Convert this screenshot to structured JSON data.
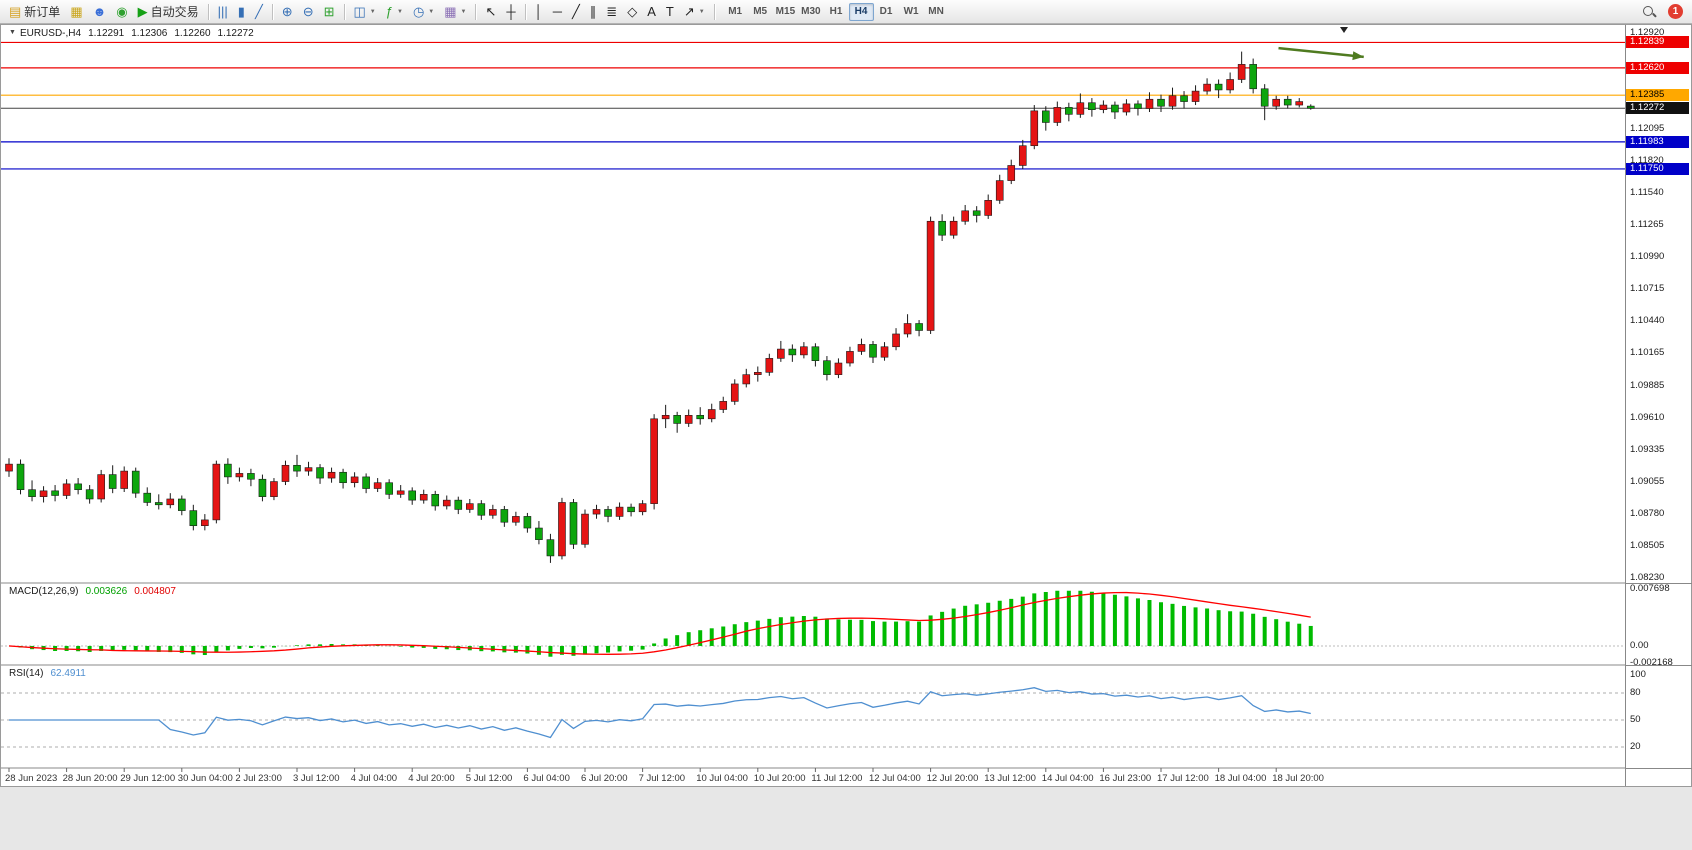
{
  "toolbar": {
    "items": [
      {
        "name": "new-order-button",
        "icon": "new-order-icon",
        "glyph": "▤",
        "glyph_color": "#d5a021",
        "label": "新订单"
      },
      {
        "name": "charts-button",
        "icon": "chart-window-icon",
        "glyph": "▦",
        "glyph_color": "#c9a417"
      },
      {
        "name": "profiles-button",
        "icon": "profile-icon",
        "glyph": "☻",
        "glyph_color": "#3a6fd8"
      },
      {
        "name": "market-watch-button",
        "icon": "market-watch-icon",
        "glyph": "◉",
        "glyph_color": "#2fa12f"
      },
      {
        "name": "autotrade-button",
        "icon": "autotrade-icon",
        "glyph": "▶",
        "glyph_color": "#15a015",
        "label": "自动交易"
      },
      {
        "type": "separator"
      },
      {
        "name": "bar-chart-button",
        "icon": "bar-chart-icon",
        "glyph": "|||",
        "glyph_color": "#356fb5"
      },
      {
        "name": "candlestick-button",
        "icon": "candlestick-icon",
        "glyph": "▮",
        "glyph_color": "#356fb5"
      },
      {
        "name": "line-chart-button",
        "icon": "line-chart-icon",
        "glyph": "╱",
        "glyph_color": "#356fb5"
      },
      {
        "type": "separator"
      },
      {
        "name": "zoom-in-button",
        "icon": "zoom-in-icon",
        "glyph": "⊕",
        "glyph_color": "#356fb5"
      },
      {
        "name": "zoom-out-button",
        "icon": "zoom-out-icon",
        "glyph": "⊖",
        "glyph_color": "#356fb5"
      },
      {
        "name": "tile-windows-button",
        "icon": "tile-windows-icon",
        "glyph": "⊞",
        "glyph_color": "#2fa12f"
      },
      {
        "type": "separator"
      },
      {
        "name": "arrange-charts-button",
        "icon": "arrange-windows-icon",
        "glyph": "◫",
        "glyph_color": "#356fb5",
        "caret": true
      },
      {
        "name": "indicators-button",
        "icon": "indicators-icon",
        "glyph": "ƒ",
        "glyph_color": "#2fa12f",
        "caret": true
      },
      {
        "name": "periods-button",
        "icon": "clock-icon",
        "glyph": "◷",
        "glyph_color": "#356fb5",
        "caret": true
      },
      {
        "name": "templates-button",
        "icon": "template-icon",
        "glyph": "▦",
        "glyph_color": "#8a6fb5",
        "caret": true
      },
      {
        "type": "separator"
      },
      {
        "name": "cursor-button",
        "icon": "cursor-icon",
        "glyph": "↖",
        "glyph_color": "#222222"
      },
      {
        "name": "crosshair-button",
        "icon": "crosshair-icon",
        "glyph": "┼",
        "glyph_color": "#222222"
      },
      {
        "type": "separator"
      },
      {
        "name": "vertical-line-button",
        "icon": "vertical-line-icon",
        "glyph": "│",
        "glyph_color": "#222222"
      },
      {
        "name": "horizontal-line-button",
        "icon": "horizontal-line-icon",
        "glyph": "─",
        "glyph_color": "#222222"
      },
      {
        "name": "trendline-button",
        "icon": "trendline-icon",
        "glyph": "╱",
        "glyph_color": "#222222"
      },
      {
        "name": "channel-button",
        "icon": "channel-icon",
        "glyph": "∥",
        "glyph_color": "#222222"
      },
      {
        "name": "fibonacci-button",
        "icon": "fibonacci-icon",
        "glyph": "≣",
        "glyph_color": "#222222"
      },
      {
        "name": "shapes-button",
        "icon": "shapes-icon",
        "glyph": "◇",
        "glyph_color": "#222222"
      },
      {
        "name": "text-button",
        "icon": "text-icon",
        "glyph": "A",
        "glyph_color": "#222222"
      },
      {
        "name": "text-label-button",
        "icon": "text-label-icon",
        "glyph": "T",
        "glyph_color": "#222222"
      },
      {
        "name": "arrows-button",
        "icon": "arrow-tool-icon",
        "glyph": "↗",
        "glyph_color": "#222222",
        "caret": true
      },
      {
        "type": "separator"
      }
    ],
    "timeframes": [
      "M1",
      "M5",
      "M15",
      "M30",
      "H1",
      "H4",
      "D1",
      "W1",
      "MN"
    ],
    "active_timeframe": "H4",
    "notification_count": "1"
  },
  "chart": {
    "symbol_label": "EURUSD-,H4",
    "ohlc": {
      "open": "1.12291",
      "high": "1.12306",
      "low": "1.12260",
      "close": "1.12272"
    },
    "price_axis": {
      "max": 1.1292,
      "min": 1.0823,
      "labels": [
        "1.12920",
        "1.12095",
        "1.11820",
        "1.11540",
        "1.11265",
        "1.10990",
        "1.10715",
        "1.10440",
        "1.10165",
        "1.09885",
        "1.09610",
        "1.09335",
        "1.09055",
        "1.08780",
        "1.08505",
        "1.08230"
      ]
    },
    "colors": {
      "bull": "#e51414",
      "bear": "#0da60d",
      "wick": "#1a1a1a",
      "macd_hist": "#00bb00",
      "macd_signal": "#ff0000",
      "rsi_line": "#4f8fd0",
      "level_dash": "#adadad",
      "price_line": "#444444",
      "arrow": "#4f7b20"
    }
  },
  "macd": {
    "title": "MACD(12,26,9)",
    "value_main": "0.003626",
    "value_signal": "0.004807",
    "fast": 12,
    "slow": 26,
    "signal": 9,
    "axis_max": 0.007698,
    "axis_min": -0.002168,
    "axis_labels": {
      "max": "0.007698",
      "zero": "0.00",
      "min": "-0.002168"
    }
  },
  "rsi": {
    "title": "RSI(14)",
    "value": "62.4911",
    "period": 14,
    "levels": [
      80,
      50,
      20
    ],
    "axis_labels": [
      "100",
      "80",
      "50",
      "20"
    ]
  },
  "chart_data": {
    "type": "candlestick",
    "symbol": "EURUSD-",
    "timeframe": "H4",
    "y_range": [
      1.0823,
      1.1292
    ],
    "current_price": 1.12272,
    "candles_per_x_label": 5,
    "x_labels": [
      "28 Jun 2023",
      "28 Jun 20:00",
      "29 Jun 12:00",
      "30 Jun 04:00",
      "2 Jul 23:00",
      "3 Jul 12:00",
      "4 Jul 04:00",
      "4 Jul 20:00",
      "5 Jul 12:00",
      "6 Jul 04:00",
      "6 Jul 20:00",
      "7 Jul 12:00",
      "10 Jul 04:00",
      "10 Jul 20:00",
      "11 Jul 12:00",
      "12 Jul 04:00",
      "12 Jul 20:00",
      "13 Jul 12:00",
      "14 Jul 04:00",
      "16 Jul 23:00",
      "17 Jul 12:00",
      "18 Jul 04:00",
      "18 Jul 20:00"
    ],
    "horizontal_lines": [
      {
        "price": 1.12839,
        "color": "#ee0000",
        "badge_text": "light"
      },
      {
        "price": 1.1262,
        "color": "#ee0000",
        "badge_text": "light"
      },
      {
        "price": 1.12385,
        "color": "#ffa800",
        "badge_text": "dark"
      },
      {
        "price": 1.11983,
        "color": "#0000c8",
        "badge_text": "light"
      },
      {
        "price": 1.1175,
        "color": "#0000c8",
        "badge_text": "light"
      }
    ],
    "trend_arrow": {
      "from_index": 110.2,
      "from_price": 1.1279,
      "to_index": 117.6,
      "to_price": 1.12715
    },
    "indicators": [
      {
        "type": "MACD",
        "params": [
          12,
          26,
          9
        ],
        "display_values": [
          0.003626,
          0.004807
        ],
        "y_range": [
          -0.002168,
          0.007698
        ]
      },
      {
        "type": "RSI",
        "params": [
          14
        ],
        "display_value": 62.4911,
        "levels": [
          80,
          50,
          20
        ]
      }
    ],
    "ohlc_series": [
      [
        1.0915,
        1.0926,
        1.091,
        1.0921
      ],
      [
        1.0921,
        1.0925,
        1.0895,
        1.0899
      ],
      [
        1.0899,
        1.0907,
        1.0889,
        1.0893
      ],
      [
        1.0893,
        1.0902,
        1.0888,
        1.0898
      ],
      [
        1.0898,
        1.0903,
        1.0889,
        1.0894
      ],
      [
        1.0894,
        1.0908,
        1.0891,
        1.0904
      ],
      [
        1.0904,
        1.0909,
        1.0895,
        1.0899
      ],
      [
        1.0899,
        1.0903,
        1.0887,
        1.0891
      ],
      [
        1.0891,
        1.0916,
        1.0888,
        1.0912
      ],
      [
        1.0912,
        1.092,
        1.0896,
        1.09
      ],
      [
        1.09,
        1.0919,
        1.0897,
        1.0915
      ],
      [
        1.0915,
        1.0918,
        1.0892,
        1.0896
      ],
      [
        1.0896,
        1.0901,
        1.0885,
        1.0888
      ],
      [
        1.0888,
        1.0895,
        1.0882,
        1.0886
      ],
      [
        1.0886,
        1.0896,
        1.0883,
        1.0891
      ],
      [
        1.0891,
        1.0894,
        1.0877,
        1.0881
      ],
      [
        1.0881,
        1.0886,
        1.0864,
        1.0868
      ],
      [
        1.0868,
        1.0878,
        1.0864,
        1.0873
      ],
      [
        1.0873,
        1.0924,
        1.087,
        1.0921
      ],
      [
        1.0921,
        1.0926,
        1.0904,
        1.091
      ],
      [
        1.091,
        1.0918,
        1.0906,
        1.0913
      ],
      [
        1.0913,
        1.0917,
        1.0902,
        1.0908
      ],
      [
        1.0908,
        1.0912,
        1.0889,
        1.0893
      ],
      [
        1.0893,
        1.0909,
        1.089,
        1.0906
      ],
      [
        1.0906,
        1.0924,
        1.0903,
        1.092
      ],
      [
        1.092,
        1.0929,
        1.091,
        1.0915
      ],
      [
        1.0915,
        1.0923,
        1.0911,
        1.0918
      ],
      [
        1.0918,
        1.0921,
        1.0904,
        1.0909
      ],
      [
        1.0909,
        1.0918,
        1.0905,
        1.0914
      ],
      [
        1.0914,
        1.0917,
        1.09,
        1.0905
      ],
      [
        1.0905,
        1.0914,
        1.0901,
        1.091
      ],
      [
        1.091,
        1.0913,
        1.0896,
        1.09
      ],
      [
        1.09,
        1.0909,
        1.0897,
        1.0905
      ],
      [
        1.0905,
        1.0908,
        1.0891,
        1.0895
      ],
      [
        1.0895,
        1.0903,
        1.0892,
        1.0898
      ],
      [
        1.0898,
        1.0901,
        1.0886,
        1.089
      ],
      [
        1.089,
        1.0899,
        1.0887,
        1.0895
      ],
      [
        1.0895,
        1.0898,
        1.0881,
        1.0885
      ],
      [
        1.0885,
        1.0894,
        1.0882,
        1.089
      ],
      [
        1.089,
        1.0893,
        1.0878,
        1.0882
      ],
      [
        1.0882,
        1.0891,
        1.0879,
        1.0887
      ],
      [
        1.0887,
        1.089,
        1.0873,
        1.0877
      ],
      [
        1.0877,
        1.0886,
        1.0874,
        1.0882
      ],
      [
        1.0882,
        1.0885,
        1.0867,
        1.0871
      ],
      [
        1.0871,
        1.088,
        1.0868,
        1.0876
      ],
      [
        1.0876,
        1.0879,
        1.0862,
        1.0866
      ],
      [
        1.0866,
        1.0872,
        1.0852,
        1.0856
      ],
      [
        1.0856,
        1.0861,
        1.0836,
        1.0842
      ],
      [
        1.0842,
        1.0892,
        1.0839,
        1.0888
      ],
      [
        1.0888,
        1.0891,
        1.0848,
        1.0852
      ],
      [
        1.0852,
        1.0882,
        1.0849,
        1.0878
      ],
      [
        1.0878,
        1.0886,
        1.0874,
        1.0882
      ],
      [
        1.0882,
        1.0885,
        1.0871,
        1.0876
      ],
      [
        1.0876,
        1.0888,
        1.0873,
        1.0884
      ],
      [
        1.0884,
        1.0887,
        1.0876,
        1.088
      ],
      [
        1.088,
        1.089,
        1.0877,
        1.0887
      ],
      [
        1.0887,
        1.0964,
        1.0882,
        1.096
      ],
      [
        1.096,
        1.0972,
        1.0952,
        1.0963
      ],
      [
        1.0963,
        1.0966,
        1.0948,
        1.0956
      ],
      [
        1.0956,
        1.0968,
        1.0953,
        1.0963
      ],
      [
        1.0963,
        1.097,
        1.0955,
        1.096
      ],
      [
        1.096,
        1.0973,
        1.0957,
        1.0968
      ],
      [
        1.0968,
        1.0979,
        1.0965,
        1.0975
      ],
      [
        1.0975,
        1.0994,
        1.0972,
        1.099
      ],
      [
        1.099,
        1.1003,
        1.0987,
        1.0998
      ],
      [
        1.0998,
        1.1005,
        1.0992,
        1.1
      ],
      [
        1.1,
        1.1016,
        1.0997,
        1.1012
      ],
      [
        1.1012,
        1.1027,
        1.1009,
        1.102
      ],
      [
        1.102,
        1.1024,
        1.1009,
        1.1015
      ],
      [
        1.1015,
        1.1026,
        1.1012,
        1.1022
      ],
      [
        1.1022,
        1.1025,
        1.1005,
        1.101
      ],
      [
        1.101,
        1.1014,
        1.0993,
        1.0998
      ],
      [
        1.0998,
        1.1012,
        1.0995,
        1.1008
      ],
      [
        1.1008,
        1.1022,
        1.1005,
        1.1018
      ],
      [
        1.1018,
        1.1029,
        1.1015,
        1.1024
      ],
      [
        1.1024,
        1.1027,
        1.1008,
        1.1013
      ],
      [
        1.1013,
        1.1026,
        1.101,
        1.1022
      ],
      [
        1.1022,
        1.1038,
        1.1019,
        1.1033
      ],
      [
        1.1033,
        1.105,
        1.103,
        1.1042
      ],
      [
        1.1042,
        1.1045,
        1.1031,
        1.1036
      ],
      [
        1.1036,
        1.1134,
        1.1033,
        1.113
      ],
      [
        1.113,
        1.1136,
        1.1113,
        1.1118
      ],
      [
        1.1118,
        1.1134,
        1.1115,
        1.113
      ],
      [
        1.113,
        1.1144,
        1.1127,
        1.1139
      ],
      [
        1.1139,
        1.1143,
        1.1129,
        1.1135
      ],
      [
        1.1135,
        1.1153,
        1.1132,
        1.1148
      ],
      [
        1.1148,
        1.117,
        1.1145,
        1.1165
      ],
      [
        1.1165,
        1.1183,
        1.1162,
        1.1178
      ],
      [
        1.1178,
        1.12,
        1.1175,
        1.1195
      ],
      [
        1.1195,
        1.123,
        1.1192,
        1.1225
      ],
      [
        1.1225,
        1.1229,
        1.1208,
        1.1215
      ],
      [
        1.1215,
        1.1233,
        1.1212,
        1.1228
      ],
      [
        1.1228,
        1.1232,
        1.1216,
        1.1222
      ],
      [
        1.1222,
        1.124,
        1.1219,
        1.1232
      ],
      [
        1.1232,
        1.1236,
        1.122,
        1.1226
      ],
      [
        1.1226,
        1.1234,
        1.1223,
        1.123
      ],
      [
        1.123,
        1.1233,
        1.1218,
        1.1224
      ],
      [
        1.1224,
        1.1235,
        1.1221,
        1.1231
      ],
      [
        1.1231,
        1.1234,
        1.1221,
        1.1227
      ],
      [
        1.1227,
        1.1241,
        1.1224,
        1.1235
      ],
      [
        1.1235,
        1.1239,
        1.1224,
        1.1229
      ],
      [
        1.1229,
        1.1245,
        1.1226,
        1.1238
      ],
      [
        1.1238,
        1.1242,
        1.1227,
        1.1233
      ],
      [
        1.1233,
        1.1247,
        1.123,
        1.1242
      ],
      [
        1.1242,
        1.1253,
        1.1239,
        1.1248
      ],
      [
        1.1248,
        1.1252,
        1.1236,
        1.1243
      ],
      [
        1.1243,
        1.1258,
        1.124,
        1.1252
      ],
      [
        1.1252,
        1.1276,
        1.1249,
        1.1265
      ],
      [
        1.1265,
        1.127,
        1.124,
        1.1244
      ],
      [
        1.1244,
        1.1248,
        1.1217,
        1.1229
      ],
      [
        1.1229,
        1.1238,
        1.1226,
        1.1235
      ],
      [
        1.1235,
        1.1238,
        1.1227,
        1.123
      ],
      [
        1.123,
        1.1236,
        1.1228,
        1.1233
      ],
      [
        1.12291,
        1.12306,
        1.1226,
        1.12272
      ]
    ]
  }
}
